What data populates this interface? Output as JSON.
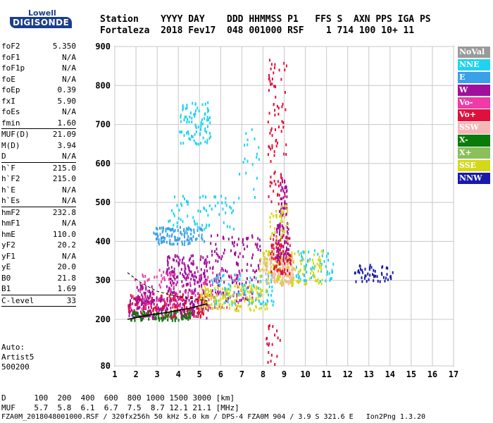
{
  "logo": {
    "org": "Lowell",
    "brand": "DIGISONDE"
  },
  "header": {
    "row1": "Station    YYYY DAY    DDD HHMMSS P1   FFS S  AXN PPS IGA PS",
    "row2": "Fortaleza  2018 Fev17  048 001000 RSF    1 714 100 10+ 11"
  },
  "params": [
    {
      "label": "foF2",
      "value": "5.350"
    },
    {
      "label": "foF1",
      "value": "N/A"
    },
    {
      "label": "foF1p",
      "value": "N/A"
    },
    {
      "label": "foE",
      "value": "N/A"
    },
    {
      "label": "foEp",
      "value": "0.39"
    },
    {
      "label": "fxI",
      "value": "5.90"
    },
    {
      "label": "foEs",
      "value": "N/A"
    },
    {
      "label": "fmin",
      "value": "1.60",
      "sep_after": true
    },
    {
      "label": "MUF(D)",
      "value": "21.09"
    },
    {
      "label": "M(D)",
      "value": "3.94"
    },
    {
      "label": "D",
      "value": "N/A",
      "sep_after": true
    },
    {
      "label": "h`F",
      "value": "215.0"
    },
    {
      "label": "h`F2",
      "value": "215.0"
    },
    {
      "label": "h`E",
      "value": "N/A"
    },
    {
      "label": "h`Es",
      "value": "N/A",
      "sep_after": true
    },
    {
      "label": "hmF2",
      "value": "232.8"
    },
    {
      "label": "hmF1",
      "value": "N/A"
    },
    {
      "label": "hmE",
      "value": "110.0"
    },
    {
      "label": "yF2",
      "value": "20.2"
    },
    {
      "label": "yF1",
      "value": "N/A"
    },
    {
      "label": "yE",
      "value": "20.0"
    },
    {
      "label": "B0",
      "value": "21.8"
    },
    {
      "label": "B1",
      "value": "1.69",
      "sep_after": true
    },
    {
      "label": "C-level",
      "value": "33",
      "sep_after": true
    }
  ],
  "auto": {
    "line1": "Auto:",
    "line2": "Artist5",
    "line3": "500200"
  },
  "footer": {
    "d_line": "D      100  200  400  600  800 1000 1500 3000 [km]",
    "muf_line": "MUF    5.7  5.8  6.1  6.7  7.5  8.7 12.1 21.1 [MHz]",
    "file_line": "FZA0M_2018048001000.RSF / 320fx256h 50 kHz 5.0 km / DPS-4 FZA0M 904 / 3.9 S 321.6 E   Ion2Png 1.3.20"
  },
  "legend": [
    {
      "label": "NoVal",
      "color": "#9a9a9a"
    },
    {
      "label": "NNE",
      "color": "#1fd3f0"
    },
    {
      "label": "E",
      "color": "#3aa0e8"
    },
    {
      "label": "W",
      "color": "#a0109a"
    },
    {
      "label": "Vo-",
      "color": "#f03aa8"
    },
    {
      "label": "Vo+",
      "color": "#e0103c"
    },
    {
      "label": "SSW",
      "color": "#f5b6b6"
    },
    {
      "label": "X-",
      "color": "#0a7a0a"
    },
    {
      "label": "X+",
      "color": "#8abf5a"
    },
    {
      "label": "SSE",
      "color": "#d4d81a"
    },
    {
      "label": "NNW",
      "color": "#1a1aa8"
    }
  ],
  "chart_data": {
    "type": "scatter",
    "title": "",
    "xlabel": "",
    "ylabel": "",
    "xlim": [
      1,
      17
    ],
    "ylim": [
      80,
      900
    ],
    "x_ticks": [
      "1",
      "2",
      "3",
      "4",
      "5",
      "6",
      "7",
      "8",
      "9",
      "10",
      "11",
      "12",
      "13",
      "14",
      "15",
      "16",
      "17"
    ],
    "y_ticks": [
      "80",
      "200",
      "300",
      "400",
      "500",
      "600",
      "700",
      "800",
      "900"
    ],
    "grid": true,
    "legend_placement": "right",
    "profile_line": {
      "color": "#000000",
      "points": [
        [
          1.6,
          200
        ],
        [
          2.5,
          210
        ],
        [
          3.5,
          218
        ],
        [
          4.5,
          228
        ],
        [
          5.35,
          240
        ]
      ]
    },
    "dashed_line": {
      "color": "#000000",
      "points": [
        [
          1.6,
          320
        ],
        [
          2.2,
          295
        ],
        [
          3.0,
          272
        ],
        [
          4.0,
          258
        ],
        [
          5.35,
          248
        ]
      ]
    },
    "clusters": [
      {
        "series": "W",
        "x": [
          1.6,
          5.4
        ],
        "y": [
          205,
          260
        ],
        "n": 220
      },
      {
        "series": "Vo+",
        "x": [
          1.6,
          5.3
        ],
        "y": [
          210,
          270
        ],
        "n": 160
      },
      {
        "series": "X-",
        "x": [
          1.7,
          4.6
        ],
        "y": [
          200,
          225
        ],
        "n": 90
      },
      {
        "series": "W",
        "x": [
          3.4,
          5.4
        ],
        "y": [
          270,
          370
        ],
        "n": 170
      },
      {
        "series": "Vo-",
        "x": [
          1.7,
          6.8
        ],
        "y": [
          230,
          330
        ],
        "n": 140
      },
      {
        "series": "W",
        "x": [
          5.4,
          7.9
        ],
        "y": [
          250,
          420
        ],
        "n": 140
      },
      {
        "series": "SSE",
        "x": [
          5.0,
          8.2
        ],
        "y": [
          225,
          290
        ],
        "n": 170
      },
      {
        "series": "NNE",
        "x": [
          5.5,
          8.5
        ],
        "y": [
          240,
          320
        ],
        "n": 80
      },
      {
        "series": "SSW",
        "x": [
          8.0,
          9.4
        ],
        "y": [
          290,
          370
        ],
        "n": 150
      },
      {
        "series": "SSE",
        "x": [
          7.8,
          9.4
        ],
        "y": [
          290,
          380
        ],
        "n": 100
      },
      {
        "series": "Vo+",
        "x": [
          8.3,
          9.3
        ],
        "y": [
          320,
          420
        ],
        "n": 90
      },
      {
        "series": "W",
        "x": [
          8.6,
          9.2
        ],
        "y": [
          350,
          450
        ],
        "n": 60
      },
      {
        "series": "E",
        "x": [
          2.8,
          5.2
        ],
        "y": [
          395,
          440
        ],
        "n": 110
      },
      {
        "series": "NNE",
        "x": [
          3.5,
          6.6
        ],
        "y": [
          430,
          520
        ],
        "n": 70
      },
      {
        "series": "NNE",
        "x": [
          4.0,
          5.5
        ],
        "y": [
          650,
          760
        ],
        "n": 90
      },
      {
        "series": "Vo+",
        "x": [
          8.2,
          9.1
        ],
        "y": [
          480,
          880
        ],
        "n": 90
      },
      {
        "series": "W",
        "x": [
          8.8,
          9.1
        ],
        "y": [
          470,
          560
        ],
        "n": 40
      },
      {
        "series": "SSE",
        "x": [
          8.3,
          9.2
        ],
        "y": [
          400,
          500
        ],
        "n": 40
      },
      {
        "series": "NNE",
        "x": [
          9.5,
          11.3
        ],
        "y": [
          300,
          380
        ],
        "n": 60
      },
      {
        "series": "SSE",
        "x": [
          9.4,
          10.8
        ],
        "y": [
          290,
          380
        ],
        "n": 60
      },
      {
        "series": "NNW",
        "x": [
          12.3,
          14.1
        ],
        "y": [
          300,
          345
        ],
        "n": 50
      },
      {
        "series": "Vo+",
        "x": [
          8.1,
          8.8
        ],
        "y": [
          85,
          200
        ],
        "n": 20
      },
      {
        "series": "W",
        "x": [
          2.0,
          2.8
        ],
        "y": [
          240,
          290
        ],
        "n": 40
      },
      {
        "series": "NNE",
        "x": [
          6.8,
          7.8
        ],
        "y": [
          500,
          700
        ],
        "n": 20
      }
    ]
  }
}
